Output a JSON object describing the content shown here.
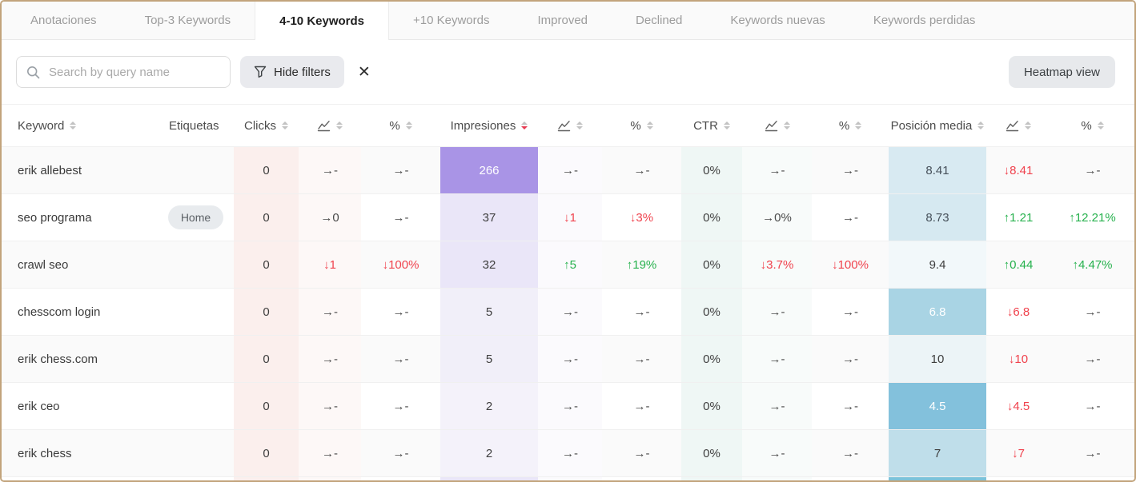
{
  "tabs": [
    {
      "label": "Anotaciones",
      "active": false
    },
    {
      "label": "Top-3 Keywords",
      "active": false
    },
    {
      "label": "4-10 Keywords",
      "active": true
    },
    {
      "label": "+10 Keywords",
      "active": false
    },
    {
      "label": "Improved",
      "active": false
    },
    {
      "label": "Declined",
      "active": false
    },
    {
      "label": "Keywords nuevas",
      "active": false
    },
    {
      "label": "Keywords perdidas",
      "active": false
    }
  ],
  "toolbar": {
    "search_placeholder": "Search by query name",
    "hide_filters_label": "Hide filters",
    "heatmap_button_label": "Heatmap view"
  },
  "colors": {
    "positive": "#26b14d",
    "negative": "#f0424d",
    "neutral": "#4a4a4a",
    "impressions_heat_high": "#a994e6",
    "position_heat_strong": "#83c1dc",
    "frame_border": "#c2a47c"
  },
  "table": {
    "columns": [
      {
        "name": "keyword",
        "label": "Keyword",
        "sortable": true
      },
      {
        "name": "etiquetas",
        "label": "Etiquetas",
        "sortable": false
      },
      {
        "name": "clicks",
        "label": "Clicks",
        "sortable": true
      },
      {
        "name": "clicks-trend",
        "icon": "line-chart",
        "sortable": true
      },
      {
        "name": "clicks-percent",
        "label": "%",
        "sortable": true
      },
      {
        "name": "impresiones",
        "label": "Impresiones",
        "sortable": true,
        "sorted": "desc"
      },
      {
        "name": "impresiones-trend",
        "icon": "line-chart",
        "sortable": true
      },
      {
        "name": "impresiones-percent",
        "label": "%",
        "sortable": true
      },
      {
        "name": "ctr",
        "label": "CTR",
        "sortable": true
      },
      {
        "name": "ctr-trend",
        "icon": "line-chart",
        "sortable": true
      },
      {
        "name": "ctr-percent",
        "label": "%",
        "sortable": true
      },
      {
        "name": "posicion-media",
        "label": "Posición media",
        "sortable": true
      },
      {
        "name": "posicion-media-trend",
        "icon": "line-chart",
        "sortable": true
      },
      {
        "name": "posicion-media-percent",
        "label": "%",
        "sortable": true
      }
    ],
    "rows": [
      {
        "keyword": "erik allebest",
        "tag": null,
        "clicks": "0",
        "clicks_trend": {
          "text": "→-",
          "tone": "flat"
        },
        "clicks_percent": {
          "text": "→-",
          "tone": "flat"
        },
        "impressions": {
          "text": "266",
          "bg": "#a994e6",
          "color": "#ffffff"
        },
        "impressions_trend": {
          "text": "→-",
          "tone": "flat"
        },
        "impressions_percent": {
          "text": "→-",
          "tone": "flat"
        },
        "ctr": "0%",
        "ctr_trend": {
          "text": "→-",
          "tone": "flat"
        },
        "ctr_percent": {
          "text": "→-",
          "tone": "flat"
        },
        "position": {
          "text": "8.41",
          "bg": "#d8eaf2",
          "color": "#46505a"
        },
        "position_trend": {
          "text": "↓8.41",
          "tone": "down"
        },
        "position_percent": {
          "text": "→-",
          "tone": "flat"
        }
      },
      {
        "keyword": "seo programa",
        "tag": "Home",
        "clicks": "0",
        "clicks_trend": {
          "text": "→0",
          "tone": "flat"
        },
        "clicks_percent": {
          "text": "→-",
          "tone": "flat"
        },
        "impressions": {
          "text": "37",
          "bg": "#eae6f8",
          "color": "#3e3e3e"
        },
        "impressions_trend": {
          "text": "↓1",
          "tone": "down"
        },
        "impressions_percent": {
          "text": "↓3%",
          "tone": "down"
        },
        "ctr": "0%",
        "ctr_trend": {
          "text": "→0%",
          "tone": "flat"
        },
        "ctr_percent": {
          "text": "→-",
          "tone": "flat"
        },
        "position": {
          "text": "8.73",
          "bg": "#d6e9f1",
          "color": "#46505a"
        },
        "position_trend": {
          "text": "↑1.21",
          "tone": "up"
        },
        "position_percent": {
          "text": "↑12.21%",
          "tone": "up"
        }
      },
      {
        "keyword": "crawl seo",
        "tag": null,
        "clicks": "0",
        "clicks_trend": {
          "text": "↓1",
          "tone": "down"
        },
        "clicks_percent": {
          "text": "↓100%",
          "tone": "down"
        },
        "impressions": {
          "text": "32",
          "bg": "#eae6f8",
          "color": "#3e3e3e"
        },
        "impressions_trend": {
          "text": "↑5",
          "tone": "up"
        },
        "impressions_percent": {
          "text": "↑19%",
          "tone": "up"
        },
        "ctr": "0%",
        "ctr_trend": {
          "text": "↓3.7%",
          "tone": "down"
        },
        "ctr_percent": {
          "text": "↓100%",
          "tone": "down"
        },
        "position": {
          "text": "9.4",
          "bg": "#f2f8fa",
          "color": "#3e3e3e"
        },
        "position_trend": {
          "text": "↑0.44",
          "tone": "up"
        },
        "position_percent": {
          "text": "↑4.47%",
          "tone": "up"
        }
      },
      {
        "keyword": "chesscom login",
        "tag": null,
        "clicks": "0",
        "clicks_trend": {
          "text": "→-",
          "tone": "flat"
        },
        "clicks_percent": {
          "text": "→-",
          "tone": "flat"
        },
        "impressions": {
          "text": "5",
          "bg": "#f1eff9",
          "color": "#3e3e3e"
        },
        "impressions_trend": {
          "text": "→-",
          "tone": "flat"
        },
        "impressions_percent": {
          "text": "→-",
          "tone": "flat"
        },
        "ctr": "0%",
        "ctr_trend": {
          "text": "→-",
          "tone": "flat"
        },
        "ctr_percent": {
          "text": "→-",
          "tone": "flat"
        },
        "position": {
          "text": "6.8",
          "bg": "#a9d4e4",
          "color": "#ffffff"
        },
        "position_trend": {
          "text": "↓6.8",
          "tone": "down"
        },
        "position_percent": {
          "text": "→-",
          "tone": "flat"
        }
      },
      {
        "keyword": "erik chess.com",
        "tag": null,
        "clicks": "0",
        "clicks_trend": {
          "text": "→-",
          "tone": "flat"
        },
        "clicks_percent": {
          "text": "→-",
          "tone": "flat"
        },
        "impressions": {
          "text": "5",
          "bg": "#f1eff9",
          "color": "#3e3e3e"
        },
        "impressions_trend": {
          "text": "→-",
          "tone": "flat"
        },
        "impressions_percent": {
          "text": "→-",
          "tone": "flat"
        },
        "ctr": "0%",
        "ctr_trend": {
          "text": "→-",
          "tone": "flat"
        },
        "ctr_percent": {
          "text": "→-",
          "tone": "flat"
        },
        "position": {
          "text": "10",
          "bg": "#ecf4f7",
          "color": "#3e3e3e"
        },
        "position_trend": {
          "text": "↓10",
          "tone": "down"
        },
        "position_percent": {
          "text": "→-",
          "tone": "flat"
        }
      },
      {
        "keyword": "erik ceo",
        "tag": null,
        "clicks": "0",
        "clicks_trend": {
          "text": "→-",
          "tone": "flat"
        },
        "clicks_percent": {
          "text": "→-",
          "tone": "flat"
        },
        "impressions": {
          "text": "2",
          "bg": "#f4f2fa",
          "color": "#3e3e3e"
        },
        "impressions_trend": {
          "text": "→-",
          "tone": "flat"
        },
        "impressions_percent": {
          "text": "→-",
          "tone": "flat"
        },
        "ctr": "0%",
        "ctr_trend": {
          "text": "→-",
          "tone": "flat"
        },
        "ctr_percent": {
          "text": "→-",
          "tone": "flat"
        },
        "position": {
          "text": "4.5",
          "bg": "#83c1dc",
          "color": "#ffffff"
        },
        "position_trend": {
          "text": "↓4.5",
          "tone": "down"
        },
        "position_percent": {
          "text": "→-",
          "tone": "flat"
        }
      },
      {
        "keyword": "erik chess",
        "tag": null,
        "clicks": "0",
        "clicks_trend": {
          "text": "→-",
          "tone": "flat"
        },
        "clicks_percent": {
          "text": "→-",
          "tone": "flat"
        },
        "impressions": {
          "text": "2",
          "bg": "#f4f2fa",
          "color": "#3e3e3e"
        },
        "impressions_trend": {
          "text": "→-",
          "tone": "flat"
        },
        "impressions_percent": {
          "text": "→-",
          "tone": "flat"
        },
        "ctr": "0%",
        "ctr_trend": {
          "text": "→-",
          "tone": "flat"
        },
        "ctr_percent": {
          "text": "→-",
          "tone": "flat"
        },
        "position": {
          "text": "7",
          "bg": "#bfdeea",
          "color": "#3e3e3e"
        },
        "position_trend": {
          "text": "↓7",
          "tone": "down"
        },
        "position_percent": {
          "text": "→-",
          "tone": "flat"
        }
      }
    ],
    "partial_row": {
      "impressions_bg": "#eae6f8",
      "position_bg": "#7cc3da"
    }
  }
}
